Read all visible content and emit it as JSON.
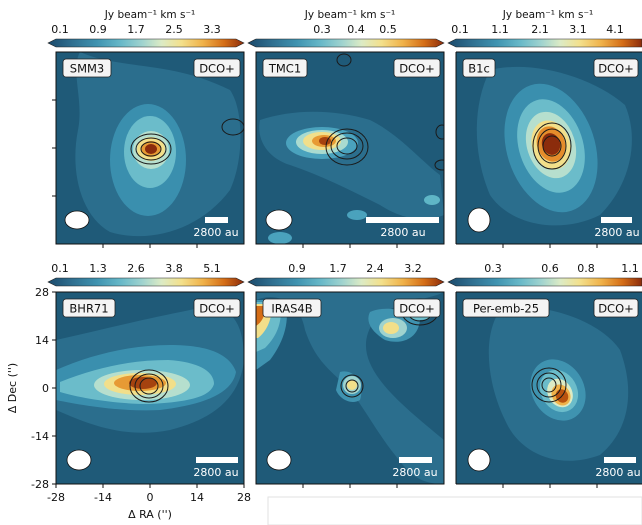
{
  "colorbar_label_top": "Jy beam⁻¹ km s⁻¹",
  "colors": {
    "background_blue": "#1f5a78",
    "colormap": [
      "#1b4a6b",
      "#2f6e8f",
      "#3f93b0",
      "#67b8c8",
      "#9fd3cf",
      "#dcebc5",
      "#f3e08c",
      "#f0b24a",
      "#d46d17",
      "#8b2c0c"
    ],
    "contour": "#1a1a1a",
    "scalebar": "#ffffff",
    "beam": "#ffffff"
  },
  "chart_data": [
    {
      "type": "heatmap",
      "panel": "SMM3",
      "molecule": "DCO+",
      "colorbar_ticks": [
        "0.1",
        "0.9",
        "1.7",
        "2.5",
        "3.3"
      ],
      "scalebar": "2800 au",
      "peak": {
        "x": 0,
        "y": 0
      }
    },
    {
      "type": "heatmap",
      "panel": "TMC1",
      "molecule": "DCO+",
      "colorbar_ticks": [
        "0.3",
        "0.4",
        "0.5"
      ],
      "scalebar": "2800 au",
      "peak": {
        "x": 0,
        "y": 0
      }
    },
    {
      "type": "heatmap",
      "panel": "B1c",
      "molecule": "DCO+",
      "colorbar_ticks": [
        "0.1",
        "1.1",
        "2.1",
        "3.1",
        "4.1"
      ],
      "scalebar": "2800 au",
      "peak": {
        "x": 0,
        "y": 0
      }
    },
    {
      "type": "heatmap",
      "panel": "BHR71",
      "molecule": "DCO+",
      "colorbar_ticks": [
        "0.1",
        "1.3",
        "2.6",
        "3.8",
        "5.1"
      ],
      "scalebar": "2800 au",
      "peak": {
        "x": 0,
        "y": 0
      },
      "xlabel": "Δ RA ('')",
      "ylabel": "Δ Dec ('')",
      "xticks": [
        "-28",
        "-14",
        "0",
        "14",
        "28"
      ],
      "yticks": [
        "28",
        "14",
        "0",
        "-14",
        "-28"
      ]
    },
    {
      "type": "heatmap",
      "panel": "IRAS4B",
      "molecule": "DCO+",
      "colorbar_ticks": [
        "0.9",
        "1.7",
        "2.4",
        "3.2"
      ],
      "scalebar": "2800 au",
      "peak": {
        "x": 0,
        "y": 0
      }
    },
    {
      "type": "heatmap",
      "panel": "Per-emb-25",
      "molecule": "DCO+",
      "colorbar_ticks": [
        "0.3",
        "0.6",
        "0.8",
        "1.1"
      ],
      "scalebar": "2800 au",
      "peak": {
        "x": 0,
        "y": 0
      }
    }
  ]
}
